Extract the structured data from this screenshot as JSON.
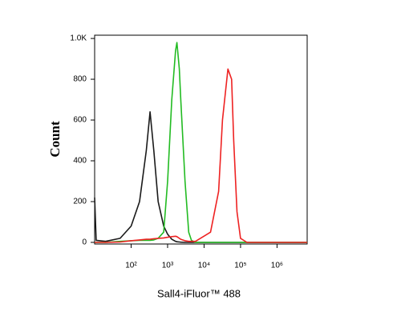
{
  "chart_data": {
    "type": "line",
    "x_label": "Sall4-iFluor™ 488",
    "y_label": "Count",
    "xscale": "log",
    "xlim": [
      10,
      6700000
    ],
    "xticks": [
      {
        "value": 100,
        "label": "10²"
      },
      {
        "value": 1000,
        "label": "10³"
      },
      {
        "value": 10000,
        "label": "10⁴"
      },
      {
        "value": 100000,
        "label": "10⁵"
      },
      {
        "value": 1000000,
        "label": "10⁶"
      }
    ],
    "ylim": [
      -8,
      1016
    ],
    "yticks": [
      0,
      200,
      400,
      600,
      800,
      {
        "value": 1000,
        "label": "1.0K"
      }
    ],
    "x": [
      10,
      11,
      20,
      50,
      100,
      170,
      260,
      330,
      420,
      550,
      780,
      1000,
      1300,
      1650,
      1800,
      2100,
      2300,
      3000,
      3800,
      4500,
      5800,
      15000,
      25000,
      32000,
      45000,
      57000,
      65000,
      80000,
      100000,
      150000,
      1000000,
      6700000
    ],
    "series": [
      {
        "color": "#1a1a1a",
        "values": [
          220,
          10,
          5,
          20,
          80,
          200,
          450,
          640,
          450,
          200,
          80,
          40,
          15,
          5,
          3,
          2,
          1,
          0,
          0,
          0,
          0,
          0,
          0,
          0,
          0,
          0,
          0,
          0,
          0,
          0,
          0,
          0
        ]
      },
      {
        "color": "#22bb22",
        "values": [
          0,
          0,
          0,
          5,
          8,
          10,
          10,
          10,
          12,
          20,
          50,
          300,
          700,
          940,
          980,
          850,
          700,
          300,
          50,
          10,
          0,
          0,
          0,
          0,
          0,
          0,
          0,
          0,
          0,
          0,
          0,
          0
        ]
      },
      {
        "color": "#ee2222",
        "values": [
          0,
          0,
          0,
          2,
          8,
          12,
          15,
          15,
          18,
          20,
          22,
          25,
          28,
          30,
          28,
          20,
          15,
          8,
          5,
          5,
          5,
          50,
          250,
          600,
          850,
          800,
          500,
          150,
          20,
          0,
          0,
          0
        ]
      }
    ]
  }
}
